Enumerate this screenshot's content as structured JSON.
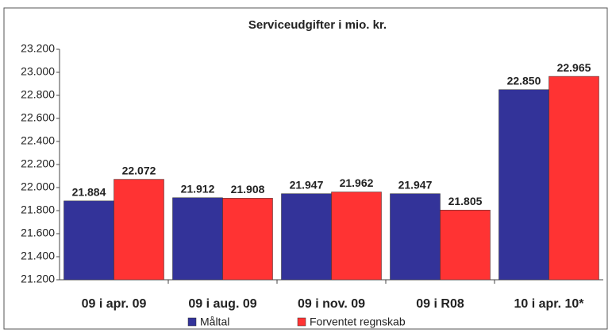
{
  "chart_data": {
    "type": "bar",
    "title": "Serviceudgifter i mio. kr.",
    "categories": [
      "09 i apr. 09",
      "09 i aug. 09",
      "09 i nov. 09",
      "09 i R08",
      "10 i apr. 10*"
    ],
    "series": [
      {
        "name": "Måltal",
        "color": "#333399",
        "values": [
          21884,
          21912,
          21947,
          21947,
          22850
        ],
        "value_labels": [
          "21.884",
          "21.912",
          "21.947",
          "21.947",
          "22.850"
        ]
      },
      {
        "name": "Forventet regnskab",
        "color": "#ff3333",
        "values": [
          22072,
          21908,
          21962,
          21805,
          22965
        ],
        "value_labels": [
          "22.072",
          "21.908",
          "21.962",
          "21.805",
          "22.965"
        ]
      }
    ],
    "ylim": [
      21200,
      23200
    ],
    "yticks": [
      {
        "value": 21200,
        "label": "21.200"
      },
      {
        "value": 21400,
        "label": "21.400"
      },
      {
        "value": 21600,
        "label": "21.600"
      },
      {
        "value": 21800,
        "label": "21.800"
      },
      {
        "value": 22000,
        "label": "22.000"
      },
      {
        "value": 22200,
        "label": "22.200"
      },
      {
        "value": 22400,
        "label": "22.400"
      },
      {
        "value": 22600,
        "label": "22.600"
      },
      {
        "value": 22800,
        "label": "22.800"
      },
      {
        "value": 23000,
        "label": "23.000"
      },
      {
        "value": 23200,
        "label": "23.200"
      }
    ],
    "grid": false
  }
}
